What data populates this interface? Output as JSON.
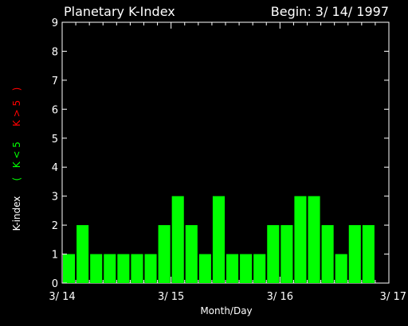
{
  "header": {
    "title": "Planetary K-Index",
    "begin_label": "Begin: 3/ 14/ 1997"
  },
  "colors": {
    "background": "#000000",
    "axis": "#ffffff",
    "bar_fill": "#00ff00",
    "quiet_text": "#00ff00",
    "storm_text": "#ff0000"
  },
  "ylabel_parts": {
    "base": "K-index",
    "open_paren": "(",
    "quiet": "K < 5",
    "storm": "K > 5",
    "close_paren": ")"
  },
  "chart_data": {
    "type": "bar",
    "title": "Planetary K-Index",
    "subtitle": "Begin: 3/ 14/ 1997",
    "xlabel": "Month/Day",
    "ylabel": "K-index ( K < 5 K > 5 )",
    "ylim": [
      0,
      9
    ],
    "xlim_days": [
      0,
      3
    ],
    "x_tick_labels": [
      "3/ 14",
      "3/ 15",
      "3/ 16",
      "3/ 17"
    ],
    "y_tick_labels": [
      "0",
      "1",
      "2",
      "3",
      "4",
      "5",
      "6",
      "7",
      "8",
      "9"
    ],
    "interval_hours": 3,
    "values": [
      1,
      2,
      1,
      1,
      1,
      1,
      1,
      2,
      3,
      2,
      1,
      3,
      1,
      1,
      1,
      2,
      2,
      3,
      3,
      2,
      1,
      2,
      2,
      0
    ],
    "grid": false,
    "legend": "none"
  }
}
